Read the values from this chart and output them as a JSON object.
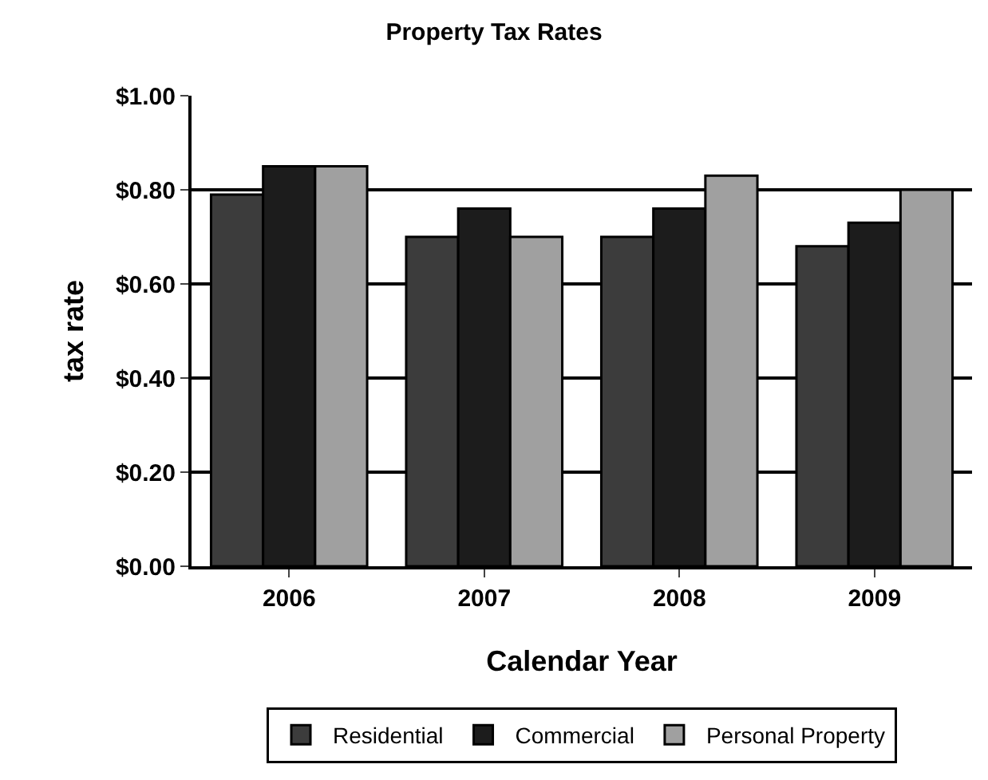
{
  "chart_data": {
    "type": "bar",
    "title": "Property Tax Rates",
    "xlabel": "Calendar Year",
    "ylabel": "tax rate",
    "categories": [
      "2006",
      "2007",
      "2008",
      "2009"
    ],
    "series": [
      {
        "name": "Residential",
        "color": "#3c3c3c",
        "values": [
          0.79,
          0.7,
          0.7,
          0.68
        ]
      },
      {
        "name": "Commercial",
        "color": "#1c1c1c",
        "values": [
          0.85,
          0.76,
          0.76,
          0.73
        ]
      },
      {
        "name": "Personal Property",
        "color": "#a0a0a0",
        "values": [
          0.85,
          0.7,
          0.83,
          0.8
        ]
      }
    ],
    "ylim": [
      0,
      1
    ],
    "yticks": [
      {
        "value": 0,
        "label": "$0.00"
      },
      {
        "value": 0.2,
        "label": "$0.20"
      },
      {
        "value": 0.4,
        "label": "$0.40"
      },
      {
        "value": 0.6,
        "label": "$0.60"
      },
      {
        "value": 0.8,
        "label": "$0.80"
      },
      {
        "value": 1,
        "label": "$1.00"
      }
    ],
    "grid": "y",
    "legend": "bottom"
  }
}
